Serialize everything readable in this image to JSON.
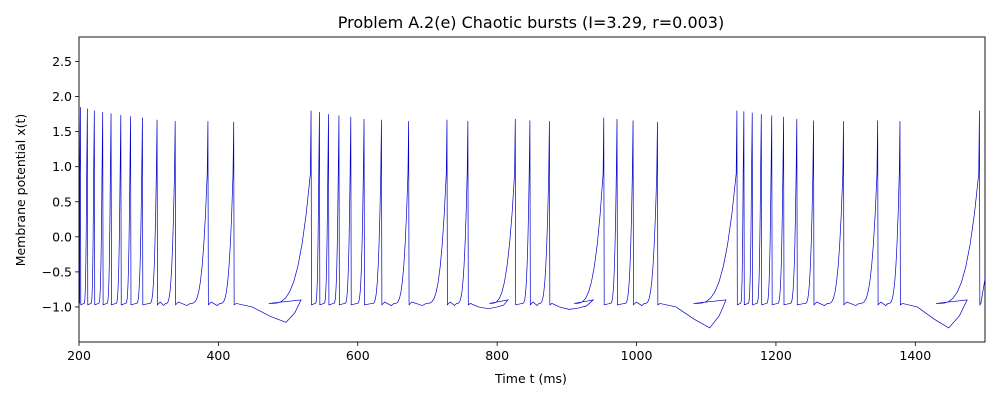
{
  "chart_data": {
    "type": "line",
    "title": "Problem A.2(e) Chaotic bursts (I=3.29, r=0.003)",
    "xlabel": "Time t (ms)",
    "ylabel": "Membrane potential x(t)",
    "xlim": [
      200,
      1500
    ],
    "ylim": [
      -1.5,
      2.85
    ],
    "xticks": [
      200,
      400,
      600,
      800,
      1000,
      1200,
      1400
    ],
    "xtick_labels": [
      "200",
      "400",
      "600",
      "800",
      "1000",
      "1200",
      "1400"
    ],
    "yticks": [
      -1.0,
      -0.5,
      0.0,
      0.5,
      1.0,
      1.5,
      2.0,
      2.5
    ],
    "ytick_labels": [
      "−1.0",
      "−0.5",
      "0.0",
      "0.5",
      "1.0",
      "1.5",
      "2.0",
      "2.5"
    ],
    "grid": false,
    "series": [
      {
        "color": "#0000cc",
        "spikes": [
          {
            "t": 202,
            "peak": 1.85
          },
          {
            "t": 212,
            "peak": 1.83
          },
          {
            "t": 222,
            "peak": 1.8
          },
          {
            "t": 234,
            "peak": 1.78
          },
          {
            "t": 246,
            "peak": 1.76
          },
          {
            "t": 260,
            "peak": 1.74
          },
          {
            "t": 274,
            "peak": 1.72
          },
          {
            "t": 291,
            "peak": 1.7
          },
          {
            "t": 312,
            "peak": 1.67
          },
          {
            "t": 338,
            "peak": 1.65
          },
          {
            "t": 385,
            "peak": 1.65
          },
          {
            "t": 422,
            "peak": 1.64
          },
          {
            "t": 533,
            "peak": 1.8
          },
          {
            "t": 545,
            "peak": 1.78
          },
          {
            "t": 558,
            "peak": 1.75
          },
          {
            "t": 573,
            "peak": 1.73
          },
          {
            "t": 590,
            "peak": 1.71
          },
          {
            "t": 609,
            "peak": 1.68
          },
          {
            "t": 634,
            "peak": 1.67
          },
          {
            "t": 673,
            "peak": 1.65
          },
          {
            "t": 728,
            "peak": 1.67
          },
          {
            "t": 758,
            "peak": 1.65
          },
          {
            "t": 826,
            "peak": 1.68
          },
          {
            "t": 847,
            "peak": 1.66
          },
          {
            "t": 875,
            "peak": 1.65
          },
          {
            "t": 953,
            "peak": 1.7
          },
          {
            "t": 972,
            "peak": 1.68
          },
          {
            "t": 995,
            "peak": 1.66
          },
          {
            "t": 1030,
            "peak": 1.64
          },
          {
            "t": 1144,
            "peak": 1.8
          },
          {
            "t": 1154,
            "peak": 1.79
          },
          {
            "t": 1166,
            "peak": 1.77
          },
          {
            "t": 1179,
            "peak": 1.75
          },
          {
            "t": 1194,
            "peak": 1.73
          },
          {
            "t": 1211,
            "peak": 1.71
          },
          {
            "t": 1230,
            "peak": 1.68
          },
          {
            "t": 1254,
            "peak": 1.66
          },
          {
            "t": 1297,
            "peak": 1.65
          },
          {
            "t": 1346,
            "peak": 1.66
          },
          {
            "t": 1378,
            "peak": 1.65
          },
          {
            "t": 1492,
            "peak": 1.8
          }
        ],
        "troughs": [
          {
            "t": 497,
            "value": -1.22
          },
          {
            "t": 800,
            "value": -1.0
          },
          {
            "t": 915,
            "value": -1.02
          },
          {
            "t": 1105,
            "value": -1.3
          },
          {
            "t": 1448,
            "value": -1.3
          }
        ],
        "baseline": -0.95
      }
    ]
  }
}
